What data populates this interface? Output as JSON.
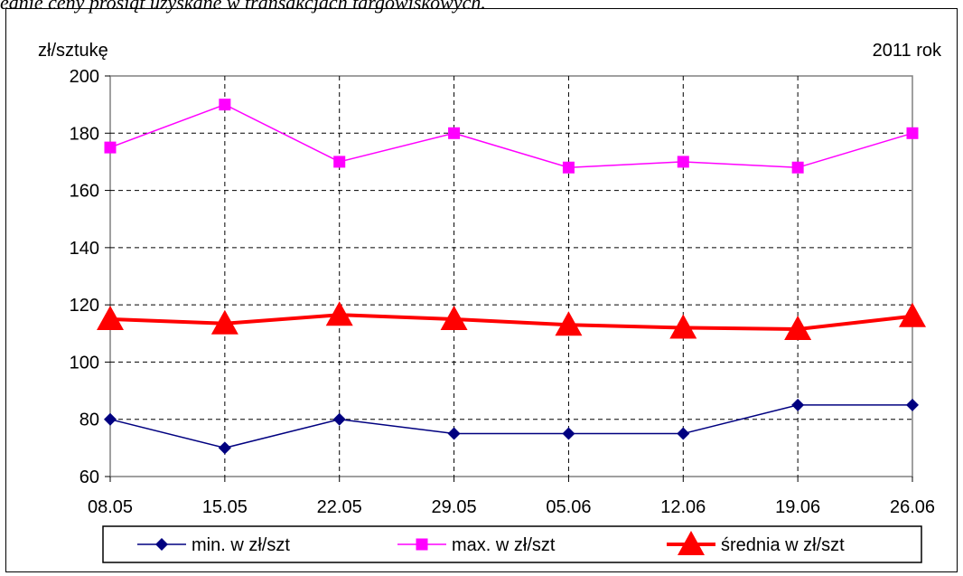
{
  "caption": "ednie ceny prosiąt uzyskane w transakcjach targowiskowych.",
  "chart_data": {
    "type": "line",
    "ylabel": "zł/sztukę",
    "year_label": "2011 rok",
    "ylim": [
      60,
      200
    ],
    "yticks": [
      60,
      80,
      100,
      120,
      140,
      160,
      180,
      200
    ],
    "grid": true,
    "legend_placement": "bottom",
    "categories": [
      "08.05",
      "15.05",
      "22.05",
      "29.05",
      "05.06",
      "12.06",
      "19.06",
      "26.06"
    ],
    "series": [
      {
        "name": "min. w zł/szt",
        "color": "#000080",
        "marker": "diamond",
        "values": [
          80,
          70,
          80,
          75,
          75,
          75,
          85,
          85
        ]
      },
      {
        "name": "max. w zł/szt",
        "color": "#ff00ff",
        "marker": "square",
        "values": [
          175,
          190,
          170,
          180,
          168,
          170,
          168,
          180
        ]
      },
      {
        "name": "średnia w zł/szt",
        "color": "#ff0000",
        "marker": "triangle",
        "values": [
          115,
          113.5,
          116.5,
          115,
          113,
          112,
          111.5,
          116
        ]
      }
    ]
  }
}
